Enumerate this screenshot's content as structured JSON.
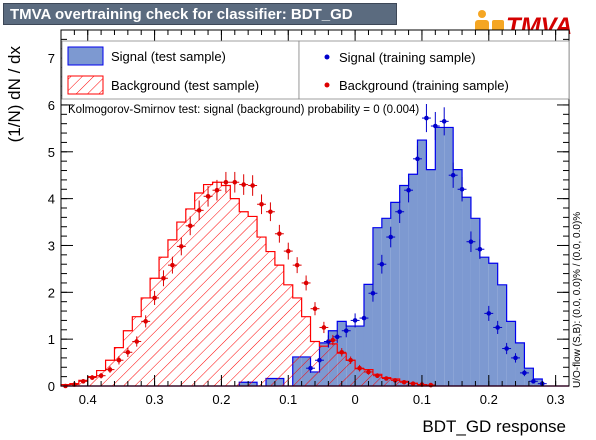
{
  "title": "TMVA overtraining check for classifier: BDT_GD",
  "logo_text": "TMVA",
  "colors": {
    "signal_fill": "#7d99d1",
    "signal_line": "#0000ee",
    "background_hatch": "#ff0000",
    "title_bg": "#5b6b7f",
    "logo_orange": "#f5a623"
  },
  "legend": {
    "signal_test": "Signal (test sample)",
    "background_test": "Background (test sample)",
    "signal_train": "Signal (training sample)",
    "background_train": "Background (training sample)"
  },
  "ks_text": "Kolmogorov-Smirnov test: signal (background) probability =     0 (0.004)",
  "overflow_text": "U/O-flow (S,B): (0.0, 0.0)% / (0.0, 0.0)%",
  "chart_data": {
    "type": "histogram",
    "title": "TMVA overtraining check for classifier: BDT_GD",
    "xlabel": "BDT_GD response",
    "ylabel": "(1/N) dN / dx",
    "xlim": [
      -0.44,
      0.32
    ],
    "ylim": [
      0,
      7.6
    ],
    "x_ticks": [
      -0.4,
      -0.3,
      -0.2,
      -0.1,
      0,
      0.1,
      0.2,
      0.3
    ],
    "x_tick_labels": [
      "0.4",
      "0.3",
      "0.2",
      "0.1",
      "0",
      "0.1",
      "0.2",
      "0.3"
    ],
    "y_ticks": [
      0,
      1,
      2,
      3,
      4,
      5,
      6,
      7
    ],
    "y_tick_labels": [
      "0",
      "1",
      "2",
      "3",
      "4",
      "5",
      "6",
      "7"
    ],
    "bin_edges": [
      -0.44,
      -0.4267,
      -0.4133,
      -0.4,
      -0.3867,
      -0.3733,
      -0.36,
      -0.3467,
      -0.3333,
      -0.32,
      -0.3067,
      -0.2933,
      -0.28,
      -0.2667,
      -0.2533,
      -0.24,
      -0.2267,
      -0.2133,
      -0.2,
      -0.1867,
      -0.1733,
      -0.16,
      -0.1467,
      -0.1333,
      -0.12,
      -0.1067,
      -0.0933,
      -0.08,
      -0.0667,
      -0.0533,
      -0.04,
      -0.0267,
      -0.0133,
      0.0,
      0.0133,
      0.0267,
      0.04,
      0.0533,
      0.0667,
      0.08,
      0.0933,
      0.1067,
      0.12,
      0.1333,
      0.1467,
      0.16,
      0.1733,
      0.1867,
      0.2,
      0.2133,
      0.2267,
      0.24,
      0.2533,
      0.2667,
      0.28,
      0.2933,
      0.3067,
      0.32
    ],
    "series": [
      {
        "name": "Signal (test sample)",
        "style": "filled",
        "values": [
          0,
          0,
          0,
          0,
          0,
          0,
          0,
          0,
          0,
          0,
          0,
          0,
          0,
          0,
          0,
          0,
          0,
          0,
          0,
          0,
          0.08,
          0.08,
          0,
          0.16,
          0.16,
          0,
          0.62,
          0.62,
          0.3,
          0.92,
          1.18,
          1.38,
          1.28,
          1.28,
          2.17,
          3.38,
          3.58,
          3.92,
          4.28,
          4.52,
          5.25,
          4.62,
          5.52,
          5.52,
          4.62,
          4.03,
          3.58,
          2.75,
          2.62,
          2.16,
          1.38,
          0.92,
          0.38,
          0.15,
          0,
          0,
          0
        ]
      },
      {
        "name": "Background (test sample)",
        "style": "hatched",
        "values": [
          0.03,
          0.05,
          0.12,
          0.2,
          0.33,
          0.55,
          0.82,
          1.18,
          1.48,
          1.88,
          2.3,
          2.75,
          3.12,
          3.5,
          3.78,
          4.12,
          4.3,
          4.35,
          4.28,
          4.0,
          3.72,
          3.62,
          3.18,
          2.87,
          2.58,
          2.16,
          1.88,
          1.48,
          0.95,
          0.85,
          0.9,
          0.7,
          0.55,
          0.37,
          0.35,
          0.25,
          0.18,
          0.15,
          0.1,
          0.06,
          0.03,
          0.02,
          0,
          0,
          0,
          0,
          0,
          0,
          0,
          0,
          0,
          0,
          0,
          0,
          0,
          0,
          0
        ]
      },
      {
        "name": "Signal (training sample)",
        "style": "points",
        "x": [
          -0.0667,
          -0.0533,
          -0.04,
          -0.0267,
          -0.0133,
          0.0,
          0.0133,
          0.0267,
          0.04,
          0.0533,
          0.0667,
          0.08,
          0.0933,
          0.1067,
          0.12,
          0.1333,
          0.1467,
          0.16,
          0.1733,
          0.1867,
          0.2,
          0.2133,
          0.2267,
          0.24,
          0.2533,
          0.2667,
          0.28
        ],
        "values": [
          0.38,
          0.55,
          0.95,
          1.05,
          1.18,
          1.4,
          1.45,
          1.98,
          2.6,
          3.18,
          3.72,
          4.18,
          4.85,
          5.72,
          5.55,
          5.65,
          4.5,
          4.2,
          3.08,
          2.92,
          1.55,
          1.25,
          0.8,
          0.6,
          0.28,
          0.1,
          0.05
        ],
        "errors": [
          0.1,
          0.1,
          0.13,
          0.13,
          0.14,
          0.15,
          0.15,
          0.18,
          0.2,
          0.22,
          0.24,
          0.26,
          0.28,
          0.3,
          0.3,
          0.3,
          0.27,
          0.26,
          0.22,
          0.21,
          0.16,
          0.14,
          0.12,
          0.1,
          0.07,
          0.04,
          0.03
        ]
      },
      {
        "name": "Background (training sample)",
        "style": "points",
        "x": [
          -0.4333,
          -0.42,
          -0.4067,
          -0.3933,
          -0.38,
          -0.3667,
          -0.3533,
          -0.34,
          -0.3267,
          -0.3133,
          -0.3,
          -0.2867,
          -0.2733,
          -0.26,
          -0.2467,
          -0.2333,
          -0.22,
          -0.2067,
          -0.1933,
          -0.18,
          -0.1667,
          -0.1533,
          -0.14,
          -0.1267,
          -0.1133,
          -0.1,
          -0.0867,
          -0.0733,
          -0.06,
          -0.0467,
          -0.0333,
          -0.02,
          -0.0067,
          0.0067,
          0.02,
          0.0333,
          0.0467,
          0.06,
          0.0733,
          0.0867,
          0.1,
          0.1133
        ],
        "values": [
          0.0,
          0.03,
          0.1,
          0.18,
          0.22,
          0.35,
          0.55,
          0.72,
          0.95,
          1.38,
          1.88,
          2.3,
          2.58,
          2.98,
          3.42,
          3.75,
          4.05,
          4.18,
          4.35,
          4.35,
          4.3,
          4.28,
          3.88,
          3.72,
          3.25,
          2.88,
          2.58,
          2.2,
          1.65,
          1.25,
          0.98,
          0.72,
          0.55,
          0.38,
          0.3,
          0.22,
          0.16,
          0.12,
          0.08,
          0.05,
          0.03,
          0.02
        ],
        "errors": [
          0,
          0.02,
          0.04,
          0.05,
          0.06,
          0.07,
          0.09,
          0.1,
          0.11,
          0.13,
          0.15,
          0.17,
          0.18,
          0.19,
          0.2,
          0.21,
          0.22,
          0.22,
          0.22,
          0.22,
          0.22,
          0.22,
          0.21,
          0.2,
          0.19,
          0.18,
          0.17,
          0.16,
          0.14,
          0.12,
          0.11,
          0.09,
          0.08,
          0.07,
          0.06,
          0.05,
          0.04,
          0.04,
          0.03,
          0.02,
          0.02,
          0.01
        ]
      }
    ]
  }
}
